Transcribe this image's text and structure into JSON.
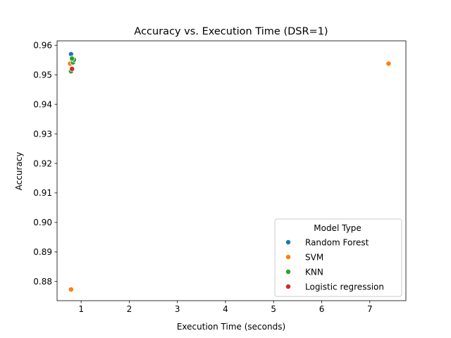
{
  "chart_data": {
    "type": "scatter",
    "title": "Accuracy vs. Execution Time (DSR=1)",
    "xlabel": "Execution Time (seconds)",
    "ylabel": "Accuracy",
    "xlim": [
      0.5,
      7.75
    ],
    "ylim": [
      0.8735,
      0.9615
    ],
    "xticks": [
      1,
      2,
      3,
      4,
      5,
      6,
      7
    ],
    "yticks": [
      0.88,
      0.89,
      0.9,
      0.91,
      0.92,
      0.93,
      0.94,
      0.95,
      0.96
    ],
    "ytick_labels": [
      "0.88",
      "0.89",
      "0.90",
      "0.91",
      "0.92",
      "0.93",
      "0.94",
      "0.95",
      "0.96"
    ],
    "grid": false,
    "legend": {
      "title": "Model Type",
      "placement": "lower-right"
    },
    "series": [
      {
        "name": "Random Forest",
        "color": "#1f77b4",
        "points": [
          [
            0.79,
            0.957
          ],
          [
            0.81,
            0.9555
          ],
          [
            0.83,
            0.955
          ]
        ]
      },
      {
        "name": "SVM",
        "color": "#ff7f0e",
        "points": [
          [
            0.77,
            0.9538
          ],
          [
            7.39,
            0.9538
          ],
          [
            0.79,
            0.8773
          ]
        ]
      },
      {
        "name": "KNN",
        "color": "#2ca02c",
        "points": [
          [
            0.79,
            0.9512
          ],
          [
            0.83,
            0.9542
          ],
          [
            0.85,
            0.9551
          ],
          [
            0.81,
            0.9555
          ]
        ]
      },
      {
        "name": "Logistic regression",
        "color": "#d62728",
        "points": [
          [
            0.81,
            0.952
          ]
        ]
      }
    ]
  }
}
